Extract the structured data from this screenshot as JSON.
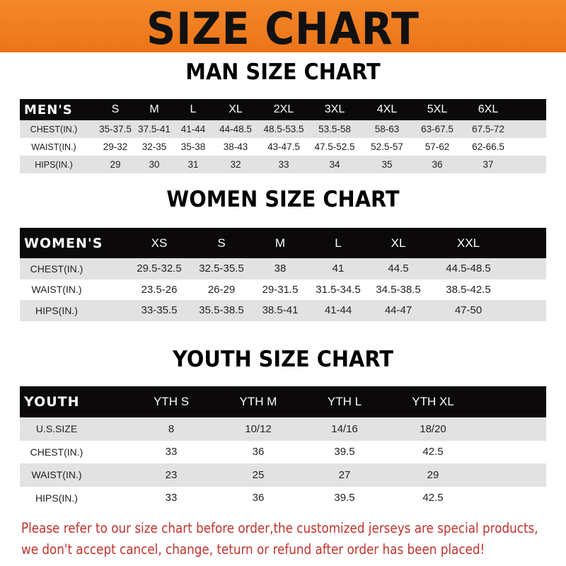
{
  "title": "SIZE CHART",
  "men": {
    "title": "MAN SIZE CHART",
    "header": [
      "MEN'S",
      "S",
      "M",
      "L",
      "XL",
      "2XL",
      "3XL",
      "4XL",
      "5XL",
      "6XL"
    ],
    "rows": [
      [
        "CHEST(IN.)",
        "35-37.5",
        "37.5-41",
        "41-44",
        "44-48.5",
        "48.5-53.5",
        "53.5-58",
        "58-63",
        "63-67.5",
        "67.5-72"
      ],
      [
        "WAIST(IN.)",
        "29-32",
        "32-35",
        "35-38",
        "38-43",
        "43-47.5",
        "47.5-52.5",
        "52.5-57",
        "57-62",
        "62-66.5"
      ],
      [
        "HIPS(IN.)",
        "29",
        "30",
        "31",
        "32",
        "33",
        "34",
        "35",
        "36",
        "37"
      ]
    ]
  },
  "women": {
    "title": "WOMEN SIZE CHART",
    "header": [
      "WOMEN'S",
      "XS",
      "S",
      "M",
      "L",
      "XL",
      "XXL"
    ],
    "rows": [
      [
        "CHEST(IN.)",
        "29.5-32.5",
        "32.5-35.5",
        "38",
        "41",
        "44.5",
        "44.5-48.5"
      ],
      [
        "WAIST(IN.)",
        "23.5-26",
        "26-29",
        "29-31.5",
        "31.5-34.5",
        "34.5-38.5",
        "38.5-42.5"
      ],
      [
        "HIPS(IN.)",
        "33-35.5",
        "35.5-38.5",
        "38.5-41",
        "41-44",
        "44-47",
        "47-50"
      ]
    ]
  },
  "youth": {
    "title": "YOUTH SIZE CHART",
    "header": [
      "YOUTH",
      "YTH S",
      "YTH M",
      "YTH L",
      "YTH XL"
    ],
    "rows": [
      [
        "U.S.SIZE",
        "8",
        "10/12",
        "14/16",
        "18/20"
      ],
      [
        "CHEST(IN.)",
        "33",
        "36",
        "39.5",
        "42.5"
      ],
      [
        "WAIST(IN.)",
        "23",
        "25",
        "27",
        "29"
      ],
      [
        "HIPS(IN.)",
        "33",
        "36",
        "39.5",
        "42.5"
      ]
    ]
  },
  "notice": {
    "line1": "Please refer to our size chart before order,the customized jerseys are special products,",
    "line2": "we don't accept cancel, change, teturn or refund after order has been placed!"
  },
  "colors": {
    "banner": "#f07a1a",
    "header_row": "#0b0909",
    "stripe": "#e2e2e2",
    "notice": "#c0322c"
  }
}
